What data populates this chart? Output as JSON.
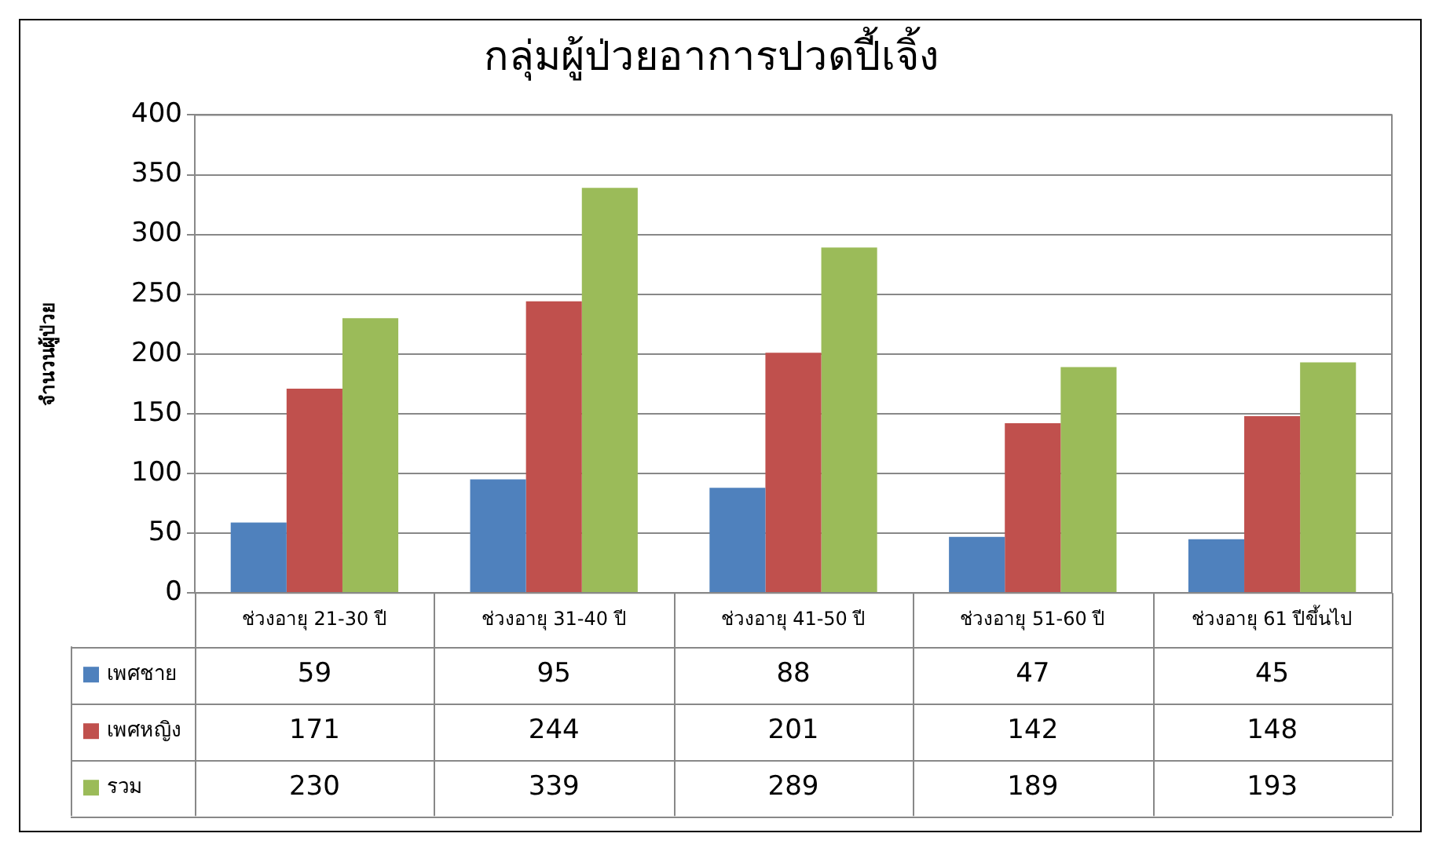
{
  "chart_data": {
    "type": "bar",
    "title": "กลุ่มผู้ป่วยอาการปวดปี้เจิ้ง",
    "ylabel": "จำนวนผู้ป่วย",
    "categories": [
      "ช่วงอายุ 21-30 ปี",
      "ช่วงอายุ 31-40 ปี",
      "ช่วงอายุ 41-50 ปี",
      "ช่วงอายุ 51-60 ปี",
      "ช่วงอายุ 61 ปีขึ้นไป"
    ],
    "series": [
      {
        "name": "เพศชาย",
        "color": "#4f81bd",
        "values": [
          59,
          95,
          88,
          47,
          45
        ]
      },
      {
        "name": "เพศหญิง",
        "color": "#c0504d",
        "values": [
          171,
          244,
          201,
          142,
          148
        ]
      },
      {
        "name": "รวม",
        "color": "#9bbb59",
        "values": [
          230,
          339,
          289,
          189,
          193
        ]
      }
    ],
    "ylim": [
      0,
      400
    ],
    "yticks": [
      0,
      50,
      100,
      150,
      200,
      250,
      300,
      350,
      400
    ],
    "grid": "y",
    "legend": "bottom",
    "data_labels": true
  }
}
